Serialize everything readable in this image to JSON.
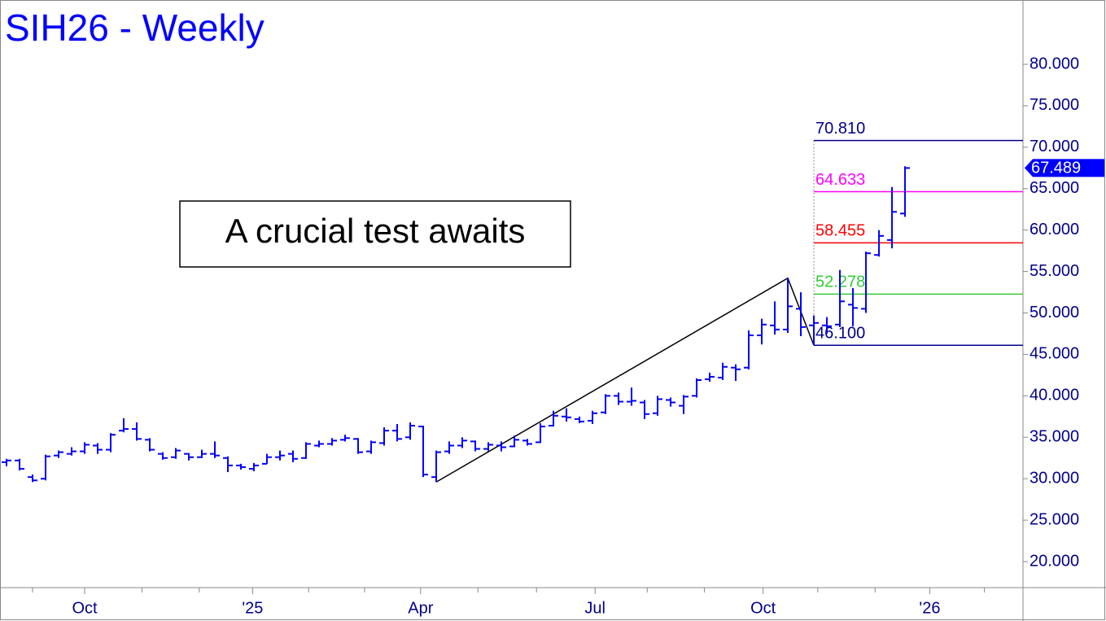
{
  "chart_data": {
    "type": "ohlc",
    "title": "SIH26 - Weekly",
    "annotation": "A crucial test awaits",
    "color": "#0000ff",
    "x": [
      0,
      1,
      2,
      3,
      4,
      5,
      6,
      7,
      8,
      9,
      10,
      11,
      12,
      13,
      14,
      15,
      16,
      17,
      18,
      19,
      20,
      21,
      22,
      23,
      24,
      25,
      26,
      27,
      28,
      29,
      30,
      31,
      32,
      33,
      34,
      35,
      36,
      37,
      38,
      39,
      40,
      41,
      42,
      43,
      44,
      45,
      46,
      47,
      48,
      49,
      50,
      51,
      52,
      53,
      54,
      55,
      56,
      57,
      58,
      59,
      60,
      61,
      62,
      63,
      64,
      65,
      66,
      67,
      68,
      69
    ],
    "open": [
      32,
      32.2,
      30.2,
      30,
      32.8,
      33,
      33.3,
      34,
      33.5,
      35.8,
      36,
      34.7,
      33,
      32.6,
      33,
      32.6,
      33,
      32.5,
      31.6,
      31.2,
      31.8,
      32.6,
      33,
      32.5,
      34,
      34.2,
      34.7,
      34.8,
      33.3,
      34.3,
      35.8,
      35,
      36.3,
      30.2,
      33.3,
      34,
      34.5,
      33.6,
      34,
      33.9,
      34.6,
      34.4,
      36.4,
      37.5,
      37.2,
      37,
      38,
      40,
      39.3,
      39.2,
      37.9,
      39.5,
      38.8,
      40,
      42,
      42.2,
      43.4,
      43.4,
      47.3,
      48.5,
      48,
      50.5,
      48.5,
      48.5,
      48.6,
      51,
      50.5,
      57,
      58.8,
      62
    ],
    "high": [
      32.4,
      32.4,
      30.5,
      32.9,
      33.4,
      33.8,
      34.4,
      34.3,
      35.5,
      37.3,
      36.8,
      34.9,
      33.2,
      33.7,
      33.1,
      33.5,
      34.5,
      32.7,
      31.8,
      31.9,
      33,
      33.4,
      33.4,
      34.4,
      34.6,
      34.9,
      35.3,
      34.9,
      34.6,
      36.2,
      36.6,
      36.8,
      36.4,
      33.4,
      34.5,
      35,
      34.6,
      34.4,
      34.5,
      35.2,
      34.8,
      36.7,
      38.2,
      38.5,
      37.5,
      38.2,
      40.2,
      40.4,
      41,
      39.5,
      40,
      39.8,
      40.1,
      42.1,
      42.8,
      44,
      43.8,
      47.9,
      49.3,
      51.4,
      54.2,
      52.5,
      49.7,
      49.5,
      55.2,
      53,
      57.4,
      60,
      65.2,
      67.7
    ],
    "low": [
      31.5,
      31,
      29.6,
      29.8,
      32.5,
      32.8,
      33,
      33,
      33.2,
      35.6,
      34.6,
      33.3,
      32.3,
      32.4,
      32.2,
      32.5,
      32.5,
      30.8,
      31.1,
      30.9,
      31.8,
      32.2,
      32,
      32.4,
      33.8,
      34,
      34.5,
      33,
      33,
      34,
      34.5,
      34.7,
      30.2,
      29.6,
      33,
      33.7,
      33.3,
      33.3,
      33.3,
      33.8,
      34,
      34.3,
      36.3,
      36.9,
      36.7,
      36.6,
      37.8,
      38.9,
      38.8,
      37.2,
      37.6,
      38.7,
      37.8,
      39.8,
      41.7,
      41.9,
      41.8,
      43.2,
      46.2,
      47.4,
      47.6,
      47.2,
      46.1,
      47.5,
      48.3,
      48.4,
      50,
      56.8,
      57.8,
      61.6
    ],
    "close": [
      32.2,
      31.2,
      29.8,
      32.7,
      33.2,
      33.3,
      34.1,
      33.5,
      35.3,
      36,
      34.8,
      33.5,
      32.5,
      33.4,
      32.6,
      33,
      32.8,
      31.6,
      31.4,
      31.6,
      32.6,
      32.8,
      32.4,
      34.2,
      34.2,
      34.6,
      34.9,
      33.2,
      34.4,
      35.8,
      34.8,
      36.4,
      30.5,
      33.2,
      34,
      34.6,
      33.6,
      34.1,
      33.8,
      34.7,
      34.2,
      36.3,
      37.6,
      37.4,
      36.9,
      37.9,
      40,
      39.3,
      39.4,
      37.8,
      39.6,
      39.2,
      39.9,
      41.9,
      42.3,
      43.5,
      43.2,
      47.3,
      48.6,
      48,
      50.8,
      48.3,
      48.8,
      48.4,
      51.4,
      50.6,
      57.2,
      59.3,
      62.2,
      67.489
    ],
    "last_label": "67.489",
    "xlim": [
      -0.5,
      78.06
    ],
    "xticks": [
      {
        "value": 6,
        "label": "Oct"
      },
      {
        "value": 18.9,
        "label": "'25"
      },
      {
        "value": 31.8,
        "label": "Apr"
      },
      {
        "value": 45.2,
        "label": "Jul"
      },
      {
        "value": 58.1,
        "label": "Oct"
      },
      {
        "value": 70.9,
        "label": "'26"
      }
    ],
    "xminorticks": [
      2,
      10.4,
      14.8,
      23.2,
      27.5,
      36.2,
      40.7,
      49.2,
      53.6,
      62.3,
      66.7,
      75.1
    ],
    "ylim": [
      16.86,
      87.76
    ],
    "yticks": [
      {
        "value": 20,
        "label": "20.000"
      },
      {
        "value": 25,
        "label": "25.000"
      },
      {
        "value": 30,
        "label": "30.000"
      },
      {
        "value": 35,
        "label": "35.000"
      },
      {
        "value": 40,
        "label": "40.000"
      },
      {
        "value": 45,
        "label": "45.000"
      },
      {
        "value": 50,
        "label": "50.000"
      },
      {
        "value": 55,
        "label": "55.000"
      },
      {
        "value": 60,
        "label": "60.000"
      },
      {
        "value": 65,
        "label": "65.000"
      },
      {
        "value": 70,
        "label": "70.000"
      },
      {
        "value": 75,
        "label": "75.000"
      },
      {
        "value": 80,
        "label": "80.000"
      }
    ],
    "levels_x": 62,
    "levels": [
      {
        "value": 70.81,
        "label": "70.810",
        "color": "#00008b"
      },
      {
        "value": 64.633,
        "label": "64.633",
        "color": "#ff00ff"
      },
      {
        "value": 58.455,
        "label": "58.455",
        "color": "#ff0000"
      },
      {
        "value": 52.278,
        "label": "52.278",
        "color": "#33cc33"
      },
      {
        "value": 46.1,
        "label": "46.100",
        "color": "#00008b"
      }
    ],
    "trendline": {
      "x": [
        33,
        60,
        62
      ],
      "values": [
        29.6,
        54.2,
        46.1
      ],
      "color": "#000000"
    }
  }
}
